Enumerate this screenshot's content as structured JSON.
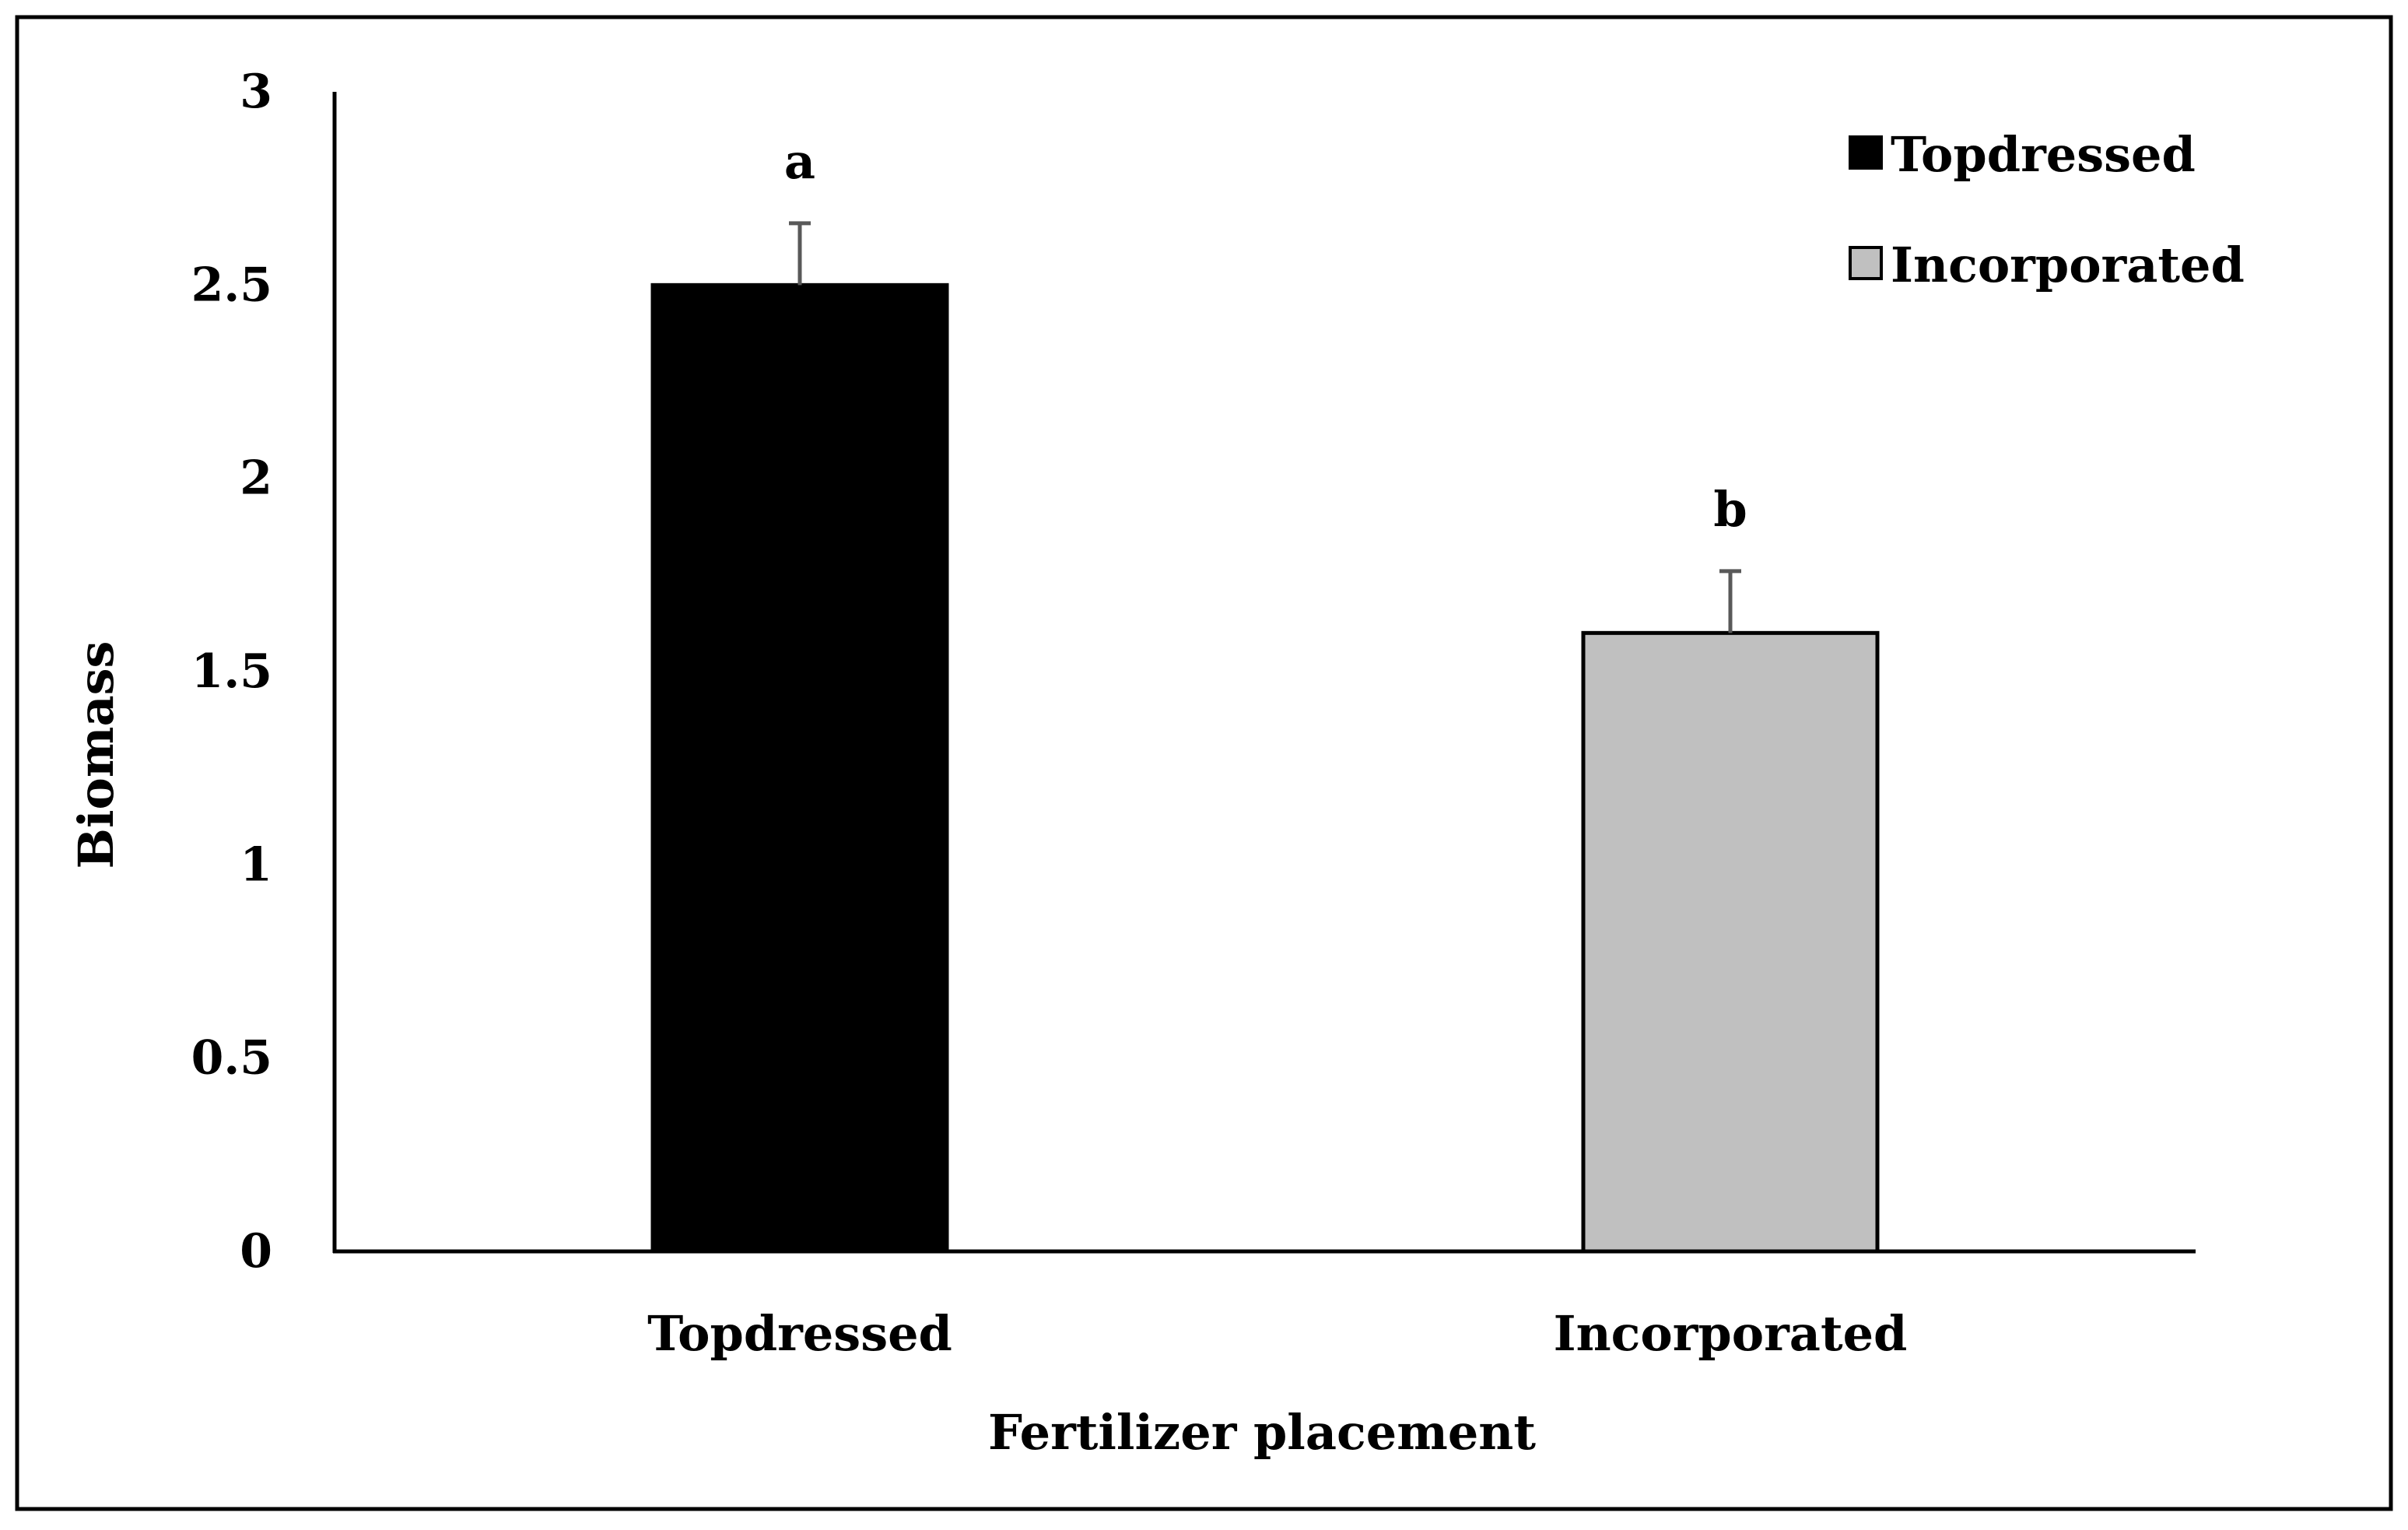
{
  "chart_data": {
    "type": "bar",
    "categories": [
      "Topdressed",
      "Incorporated"
    ],
    "series": [
      {
        "name": "Topdressed",
        "values": [
          2.5,
          null
        ],
        "errors": [
          0.16,
          null
        ],
        "letters": [
          "a",
          null
        ],
        "color": "#000000"
      },
      {
        "name": "Incorporated",
        "values": [
          null,
          1.6
        ],
        "errors": [
          null,
          0.16
        ],
        "letters": [
          null,
          "b"
        ],
        "color": "#c0c0c0"
      }
    ],
    "xlabel": "Fertilizer placement",
    "ylabel": "Biomass",
    "ylim": [
      0,
      3
    ],
    "yticks": [
      0,
      0.5,
      1,
      1.5,
      2,
      2.5,
      3
    ],
    "ytick_labels": [
      "0",
      "0.5",
      "1",
      "1.5",
      "2",
      "2.5",
      "3"
    ],
    "grid": false,
    "legend_position": "top-right",
    "error_bar_color": "#595959"
  }
}
